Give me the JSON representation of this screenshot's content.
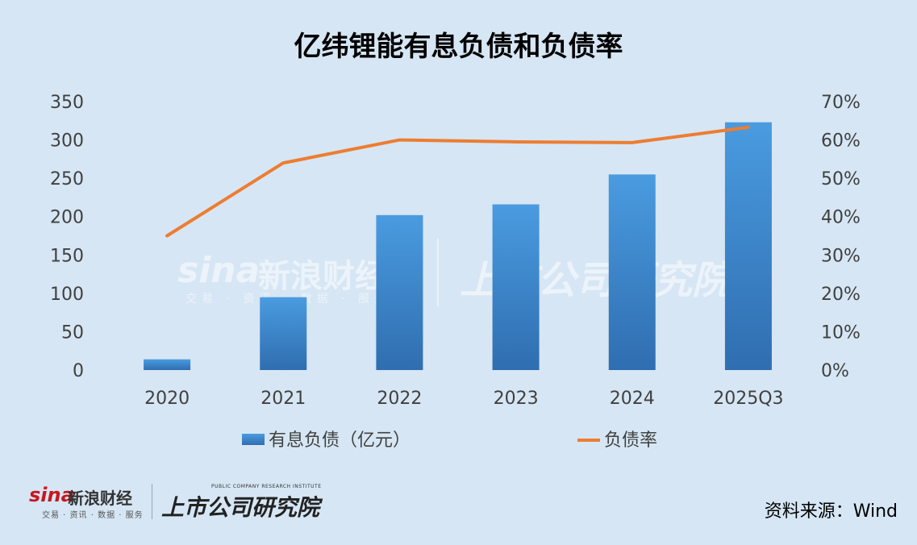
{
  "title": "亿纬锂能有息负债和负债率",
  "source": "资料来源：Wind",
  "branding": {
    "sina_word": "sina",
    "sina_name": "新浪财经",
    "sina_sub": "交易 · 资讯 · 数据 · 服务",
    "institute": "上市公司研究院",
    "institute_en": "PUBLIC COMPANY RESEARCH INSTITUTE"
  },
  "chart_data": {
    "type": "bar",
    "title": "亿纬锂能有息负债和负债率",
    "categories": [
      "2020",
      "2021",
      "2022",
      "2023",
      "2024",
      "2025Q3"
    ],
    "series": [
      {
        "name": "有息负债（亿元）",
        "type": "bar",
        "axis": "left",
        "color": "#3f8ed6",
        "values": [
          14,
          95,
          202,
          216,
          255,
          323
        ]
      },
      {
        "name": "负债率",
        "type": "line",
        "axis": "right",
        "color": "#ed7d31",
        "values": [
          35,
          54,
          60,
          59.5,
          59.3,
          63.3
        ]
      }
    ],
    "y_left": {
      "ylim": [
        0,
        350
      ],
      "ticks": [
        "0",
        "50",
        "100",
        "150",
        "200",
        "250",
        "300",
        "350"
      ]
    },
    "y_right": {
      "ylim": [
        0,
        70
      ],
      "ticks": [
        "0%",
        "10%",
        "20%",
        "30%",
        "40%",
        "50%",
        "60%",
        "70%"
      ]
    },
    "grid": false,
    "legend": "bottom"
  },
  "colors": {
    "background": "#d6e6f4",
    "bar_top": "#4a9be0",
    "bar_bottom": "#2f6eb0",
    "line": "#ed7d31",
    "axis_text": "#404040"
  }
}
